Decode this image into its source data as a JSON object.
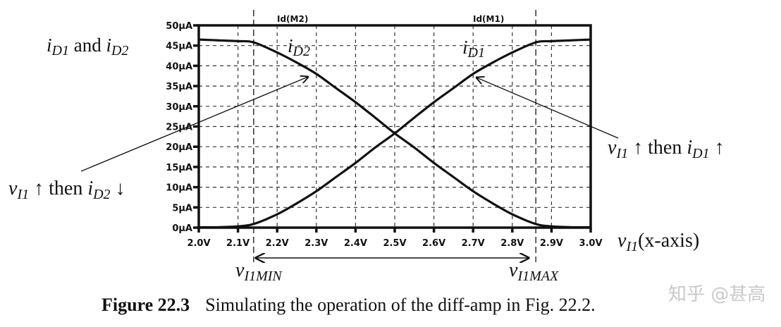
{
  "chart_data": {
    "type": "line",
    "title": "",
    "xlabel": "vI1 (x-axis)",
    "ylabel": "iD1 and iD2",
    "xlim": [
      2.0,
      3.0
    ],
    "ylim": [
      0,
      50
    ],
    "x_ticks": [
      "2.0V",
      "2.1V",
      "2.2V",
      "2.3V",
      "2.4V",
      "2.5V",
      "2.6V",
      "2.7V",
      "2.8V",
      "2.9V",
      "3.0V"
    ],
    "y_ticks": [
      "0µA",
      "5µA",
      "10µA",
      "15µA",
      "20µA",
      "25µA",
      "30µA",
      "35µA",
      "40µA",
      "45µA",
      "50µA"
    ],
    "grid": true,
    "x": [
      2.0,
      2.05,
      2.1,
      2.14,
      2.2,
      2.25,
      2.3,
      2.35,
      2.4,
      2.45,
      2.5,
      2.55,
      2.6,
      2.65,
      2.7,
      2.75,
      2.8,
      2.86,
      2.9,
      2.95,
      3.0
    ],
    "series": [
      {
        "name": "Id(M1)",
        "label": "iD1",
        "values": [
          0.1,
          0.1,
          0.3,
          0.9,
          3.3,
          6.0,
          9.0,
          12.5,
          16.0,
          19.8,
          23.3,
          27.2,
          31.0,
          34.5,
          38.0,
          40.8,
          43.3,
          45.8,
          46.1,
          46.3,
          46.5
        ]
      },
      {
        "name": "Id(M2)",
        "label": "iD2",
        "values": [
          46.5,
          46.3,
          46.1,
          45.8,
          43.3,
          40.8,
          38.0,
          34.5,
          31.0,
          27.2,
          23.3,
          19.8,
          16.0,
          12.5,
          9.0,
          6.0,
          3.3,
          0.9,
          0.3,
          0.1,
          0.1
        ]
      }
    ],
    "markers": {
      "vI1MIN": 2.14,
      "vI1MAX": 2.86
    },
    "legend_position": "top (trace names above plot)"
  },
  "labels": {
    "y_axis_title_i": "i",
    "y_axis_title_D1": "D1",
    "y_axis_title_and": " and ",
    "y_axis_title_i2": "i",
    "y_axis_title_D2": "D2",
    "trace_m2": "Id(M2)",
    "trace_m1": "Id(M1)",
    "curve_id2_i": "i",
    "curve_id2_sub": "D2",
    "curve_id1_i": "i",
    "curve_id1_sub": "D1",
    "x_axis_title_v": "v",
    "x_axis_title_sub": "I1",
    "x_axis_title_rest": "(x-axis)",
    "annot_left_v": "v",
    "annot_left_sub": "I1",
    "annot_left_arrow1": " ↑ then ",
    "annot_left_i": "i",
    "annot_left_isub": "D2",
    "annot_left_arrow2": " ↓",
    "annot_right_v": "v",
    "annot_right_sub": "I1",
    "annot_right_arrow1": " ↑ then ",
    "annot_right_i": "i",
    "annot_right_isub": "D1",
    "annot_right_arrow2": " ↑",
    "vmin_v": "v",
    "vmin_sub": "I1MIN",
    "vmax_v": "v",
    "vmax_sub": "I1MAX"
  },
  "caption": {
    "figure_number": "Figure 22.3",
    "text": "Simulating the operation of the diff-amp in Fig. 22.2."
  },
  "watermark": "知乎 @甚高"
}
